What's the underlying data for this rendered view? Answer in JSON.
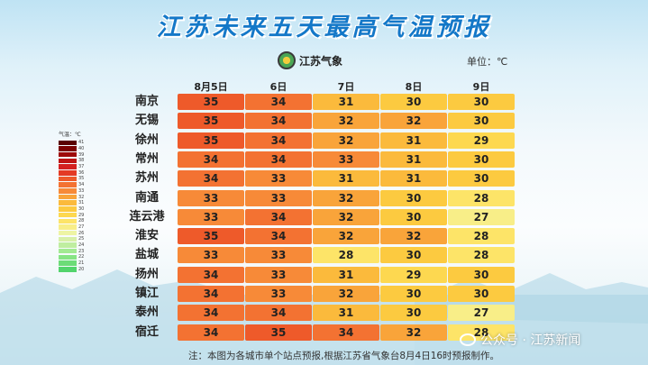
{
  "title": "江苏未来五天最高气温预报",
  "logo_text": "江苏气象",
  "unit": "单位：℃",
  "legend": {
    "title": "气温：℃",
    "items": [
      {
        "value": "41",
        "color": "#5a0000"
      },
      {
        "value": "40",
        "color": "#7c0000"
      },
      {
        "value": "39",
        "color": "#9e0a0a"
      },
      {
        "value": "38",
        "color": "#be1414"
      },
      {
        "value": "37",
        "color": "#d42020"
      },
      {
        "value": "36",
        "color": "#e43a24"
      },
      {
        "value": "35",
        "color": "#ee5a2a"
      },
      {
        "value": "34",
        "color": "#f37232"
      },
      {
        "value": "33",
        "color": "#f78a38"
      },
      {
        "value": "32",
        "color": "#f9a43a"
      },
      {
        "value": "31",
        "color": "#fbba3c"
      },
      {
        "value": "30",
        "color": "#fcca40"
      },
      {
        "value": "29",
        "color": "#fdd850"
      },
      {
        "value": "28",
        "color": "#fde468"
      },
      {
        "value": "27",
        "color": "#f8ee88"
      },
      {
        "value": "26",
        "color": "#eef4a4"
      },
      {
        "value": "25",
        "color": "#d8f0a8"
      },
      {
        "value": "24",
        "color": "#bfeea0"
      },
      {
        "value": "23",
        "color": "#a2ea92"
      },
      {
        "value": "22",
        "color": "#86e484"
      },
      {
        "value": "21",
        "color": "#6cdc78"
      },
      {
        "value": "20",
        "color": "#52d46c"
      }
    ]
  },
  "days": [
    "8月5日",
    "6日",
    "7日",
    "8日",
    "9日"
  ],
  "cities": [
    {
      "name": "南京",
      "temps": [
        "35",
        "34",
        "31",
        "30",
        "30"
      ]
    },
    {
      "name": "无锡",
      "temps": [
        "35",
        "34",
        "32",
        "32",
        "30"
      ]
    },
    {
      "name": "徐州",
      "temps": [
        "35",
        "34",
        "32",
        "31",
        "29"
      ]
    },
    {
      "name": "常州",
      "temps": [
        "34",
        "34",
        "33",
        "31",
        "30"
      ]
    },
    {
      "name": "苏州",
      "temps": [
        "34",
        "33",
        "31",
        "31",
        "30"
      ]
    },
    {
      "name": "南通",
      "temps": [
        "33",
        "33",
        "32",
        "30",
        "28"
      ]
    },
    {
      "name": "连云港",
      "temps": [
        "33",
        "34",
        "32",
        "30",
        "27"
      ]
    },
    {
      "name": "淮安",
      "temps": [
        "35",
        "34",
        "32",
        "32",
        "28"
      ]
    },
    {
      "name": "盐城",
      "temps": [
        "33",
        "33",
        "28",
        "30",
        "28"
      ]
    },
    {
      "name": "扬州",
      "temps": [
        "34",
        "33",
        "31",
        "29",
        "30"
      ]
    },
    {
      "name": "镇江",
      "temps": [
        "34",
        "33",
        "32",
        "30",
        "30"
      ]
    },
    {
      "name": "泰州",
      "temps": [
        "34",
        "34",
        "31",
        "30",
        "27"
      ]
    },
    {
      "name": "宿迁",
      "temps": [
        "34",
        "35",
        "34",
        "32",
        "28"
      ]
    }
  ],
  "note": "注：本图为各城市单个站点预报,根据江苏省气象台8月4日16时预报制作。",
  "watermark": "公众号 · 江苏新闻",
  "colors": {
    "title": "#1478c8"
  }
}
